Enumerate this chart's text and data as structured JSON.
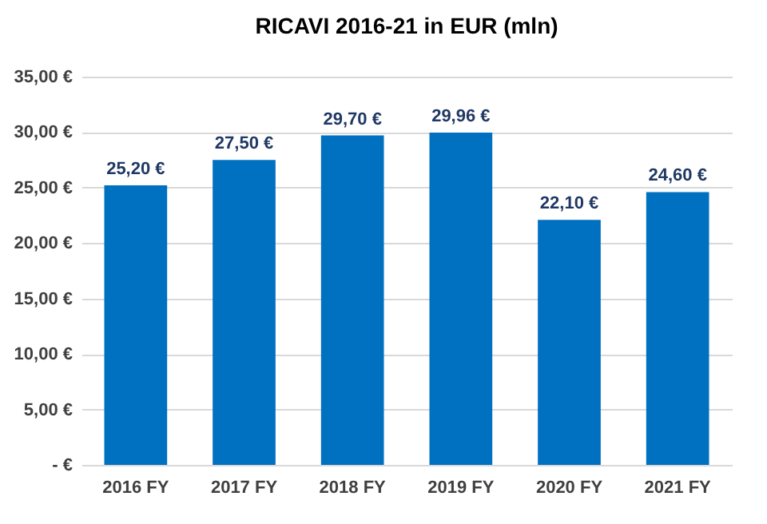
{
  "chart_data": {
    "type": "bar",
    "title": "RICAVI 2016-21 in EUR (mln)",
    "categories": [
      "2016 FY",
      "2017 FY",
      "2018 FY",
      "2019 FY",
      "2020 FY",
      "2021 FY"
    ],
    "values": [
      25.2,
      27.5,
      29.7,
      29.96,
      22.1,
      24.6
    ],
    "value_labels": [
      "25,20 €",
      "27,50 €",
      "29,70 €",
      "29,96 €",
      "22,10 €",
      "24,60 €"
    ],
    "color": "#0070c0",
    "ylim": [
      0,
      35
    ],
    "yticks": [
      {
        "value": 0,
        "label": "-  €"
      },
      {
        "value": 5,
        "label": "5,00 €"
      },
      {
        "value": 10,
        "label": "10,00 €"
      },
      {
        "value": 15,
        "label": "15,00 €"
      },
      {
        "value": 20,
        "label": "20,00 €"
      },
      {
        "value": 25,
        "label": "25,00 €"
      },
      {
        "value": 30,
        "label": "30,00 €"
      },
      {
        "value": 35,
        "label": "35,00 €"
      }
    ],
    "grid": "y"
  }
}
